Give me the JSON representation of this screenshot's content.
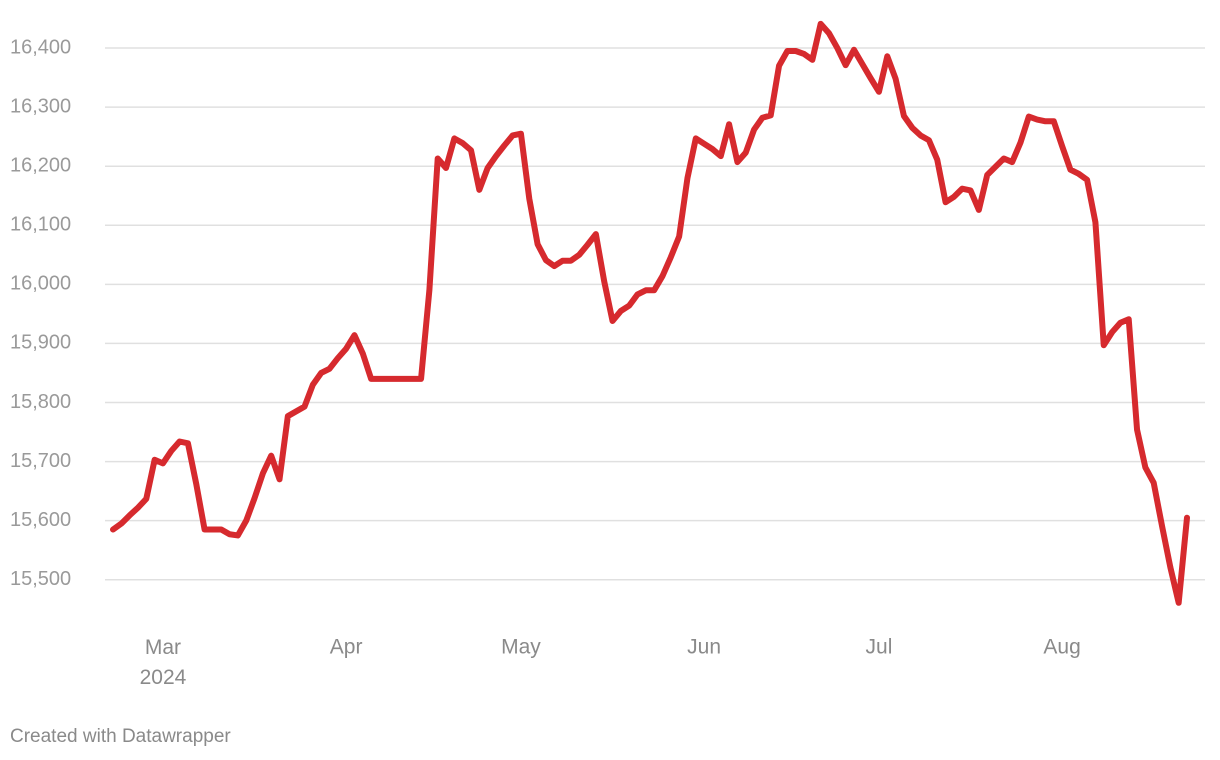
{
  "chart_data": {
    "type": "line",
    "categories": [
      null,
      null,
      null,
      null,
      null,
      null,
      "Mar 2024",
      null,
      null,
      null,
      null,
      null,
      null,
      null,
      null,
      null,
      null,
      null,
      null,
      null,
      null,
      null,
      null,
      null,
      null,
      null,
      null,
      null,
      "Apr",
      null,
      null,
      null,
      null,
      null,
      null,
      null,
      null,
      null,
      null,
      null,
      null,
      null,
      null,
      null,
      null,
      null,
      null,
      null,
      null,
      "May",
      null,
      null,
      null,
      null,
      null,
      null,
      null,
      null,
      null,
      null,
      null,
      null,
      null,
      null,
      null,
      null,
      null,
      null,
      null,
      null,
      null,
      "Jun",
      null,
      null,
      null,
      null,
      null,
      null,
      null,
      null,
      null,
      null,
      null,
      null,
      null,
      null,
      null,
      null,
      null,
      null,
      null,
      null,
      "Jul",
      null,
      null,
      null,
      null,
      null,
      null,
      null,
      null,
      null,
      null,
      null,
      null,
      null,
      null,
      null,
      null,
      null,
      null,
      null,
      null,
      null,
      "Aug",
      null,
      null,
      null,
      null,
      null,
      null,
      null,
      null,
      null,
      null,
      null,
      null,
      null,
      null,
      null
    ],
    "values": [
      15585,
      15595,
      15609,
      15622,
      15637,
      15703,
      15697,
      15718,
      15734,
      15731,
      15662,
      15585,
      15585,
      15585,
      15577,
      15575,
      15600,
      15638,
      15680,
      15710,
      15670,
      15777,
      15785,
      15793,
      15830,
      15850,
      15857,
      15875,
      15891,
      15914,
      15883,
      15840,
      15840,
      15840,
      15840,
      15840,
      15840,
      15840,
      15990,
      16213,
      16197,
      16247,
      16239,
      16227,
      16160,
      16197,
      16217,
      16235,
      16252,
      16255,
      16145,
      16068,
      16041,
      16031,
      16040,
      16040,
      16050,
      16067,
      16085,
      16005,
      15938,
      15955,
      15964,
      15983,
      15990,
      15990,
      16014,
      16046,
      16081,
      16180,
      16247,
      16238,
      16229,
      16217,
      16271,
      16207,
      16223,
      16262,
      16282,
      16286,
      16370,
      16395,
      16395,
      16390,
      16380,
      16441,
      16425,
      16400,
      16371,
      16397,
      16373,
      16349,
      16326,
      16386,
      16348,
      16285,
      16265,
      16252,
      16244,
      16211,
      16139,
      16148,
      16162,
      16159,
      16126,
      16185,
      16199,
      16213,
      16207,
      16240,
      16284,
      16279,
      16276,
      16276,
      16234,
      16194,
      16187,
      16177,
      16105,
      15897,
      15919,
      15935,
      15941,
      15754,
      15690,
      15664,
      15591,
      15521,
      15461,
      15605
    ],
    "color": "#d62a2e",
    "ylim": [
      15420,
      16450
    ],
    "yticks": [
      {
        "value": 15500,
        "label": "15,500"
      },
      {
        "value": 15600,
        "label": "15,600"
      },
      {
        "value": 15700,
        "label": "15,700"
      },
      {
        "value": 15800,
        "label": "15,800"
      },
      {
        "value": 15900,
        "label": "15,900"
      },
      {
        "value": 16000,
        "label": "16,000"
      },
      {
        "value": 16100,
        "label": "16,100"
      },
      {
        "value": 16200,
        "label": "16,200"
      },
      {
        "value": 16300,
        "label": "16,300"
      },
      {
        "value": 16400,
        "label": "16,400"
      }
    ],
    "grid": true,
    "credit": "Created with Datawrapper"
  }
}
